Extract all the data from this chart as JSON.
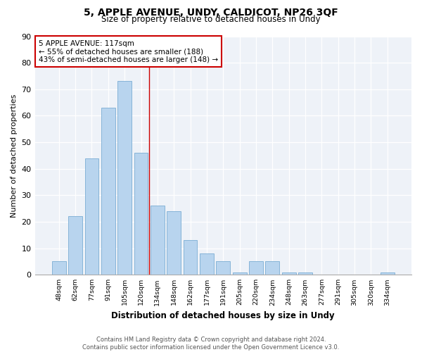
{
  "title": "5, APPLE AVENUE, UNDY, CALDICOT, NP26 3QF",
  "subtitle": "Size of property relative to detached houses in Undy",
  "xlabel": "Distribution of detached houses by size in Undy",
  "ylabel": "Number of detached properties",
  "categories": [
    "48sqm",
    "62sqm",
    "77sqm",
    "91sqm",
    "105sqm",
    "120sqm",
    "134sqm",
    "148sqm",
    "162sqm",
    "177sqm",
    "191sqm",
    "205sqm",
    "220sqm",
    "234sqm",
    "248sqm",
    "263sqm",
    "277sqm",
    "291sqm",
    "305sqm",
    "320sqm",
    "334sqm"
  ],
  "values": [
    5,
    22,
    44,
    63,
    73,
    46,
    26,
    24,
    13,
    8,
    5,
    1,
    5,
    5,
    1,
    1,
    0,
    0,
    0,
    0,
    1
  ],
  "bar_color": "#b8d4ee",
  "bar_edge_color": "#7aadd4",
  "property_line_x": 5.5,
  "annotation_title": "5 APPLE AVENUE: 117sqm",
  "annotation_line1": "← 55% of detached houses are smaller (188)",
  "annotation_line2": "43% of semi-detached houses are larger (148) →",
  "annotation_box_color": "#cc0000",
  "ylim": [
    0,
    90
  ],
  "yticks": [
    0,
    10,
    20,
    30,
    40,
    50,
    60,
    70,
    80,
    90
  ],
  "footer": "Contains HM Land Registry data © Crown copyright and database right 2024.\nContains public sector information licensed under the Open Government Licence v3.0.",
  "background_color": "#eef2f8",
  "fig_width": 6.0,
  "fig_height": 5.0,
  "dpi": 100
}
